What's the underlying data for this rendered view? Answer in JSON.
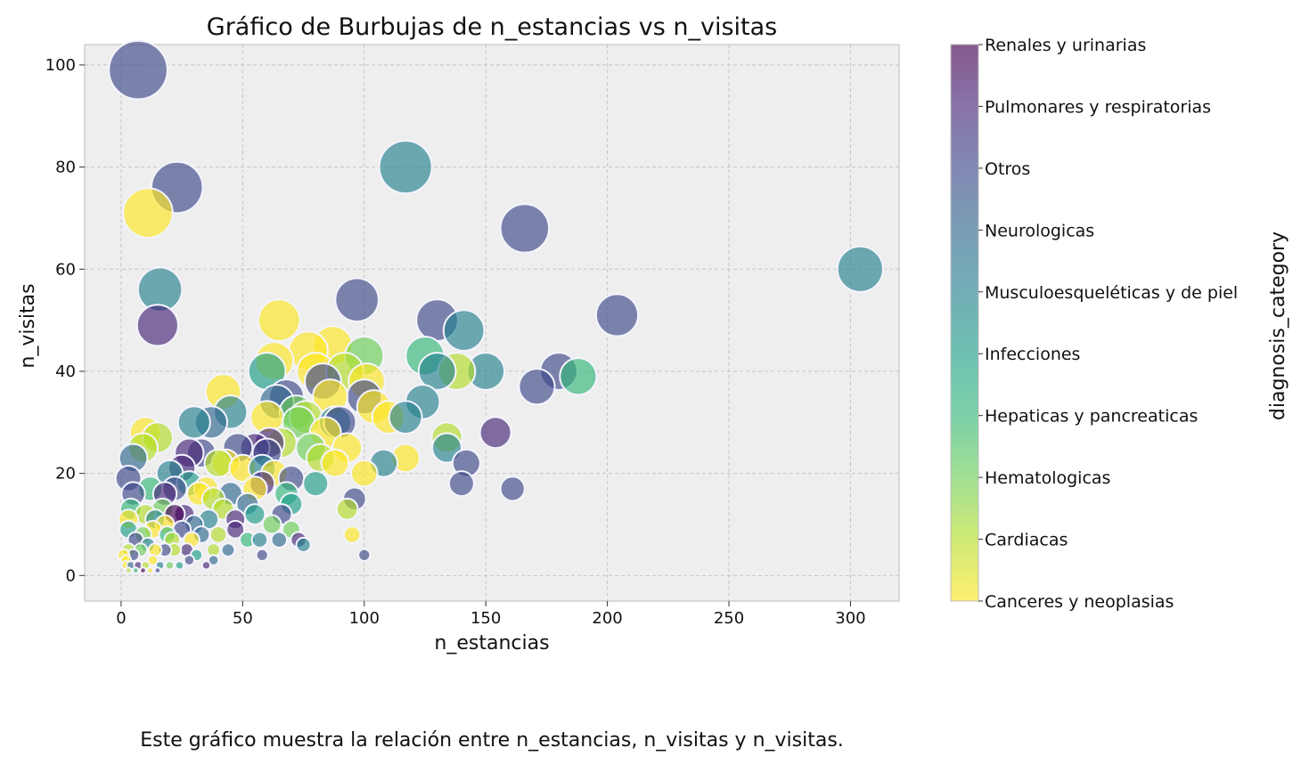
{
  "chart_data": {
    "type": "scatter",
    "title": "Gráfico de Burbujas de n_estancias vs n_visitas",
    "xlabel": "n_estancias",
    "ylabel": "n_visitas",
    "xlim": [
      -15,
      320
    ],
    "ylim": [
      -5,
      104
    ],
    "xticks": [
      0,
      50,
      100,
      150,
      200,
      250,
      300
    ],
    "yticks": [
      0,
      20,
      40,
      60,
      80,
      100
    ],
    "grid": true,
    "bubble_size_variable": "n_visitas",
    "colorbar": {
      "label": "diagnosis_category",
      "categories": [
        "Canceres y neoplasias",
        "Cardiacas",
        "Hematologicas",
        "Hepaticas y pancreaticas",
        "Infecciones",
        "Musculoesqueléticas y de piel",
        "Neurologicas",
        "Otros",
        "Pulmonares y respiratorias",
        "Renales y urinarias"
      ],
      "colors": [
        "#fde725",
        "#b5de2b",
        "#6ece58",
        "#35b779",
        "#1f9e89",
        "#26828e",
        "#31688e",
        "#3e4989",
        "#482878",
        "#440154"
      ]
    },
    "points": [
      [
        7,
        99,
        7
      ],
      [
        23,
        76,
        7
      ],
      [
        11,
        71,
        0
      ],
      [
        117,
        80,
        5
      ],
      [
        166,
        68,
        7
      ],
      [
        304,
        60,
        5
      ],
      [
        16,
        56,
        5
      ],
      [
        15,
        49,
        8
      ],
      [
        97,
        54,
        7
      ],
      [
        130,
        50,
        7
      ],
      [
        204,
        51,
        7
      ],
      [
        141,
        48,
        5
      ],
      [
        65,
        50,
        0
      ],
      [
        100,
        43,
        2
      ],
      [
        125,
        43,
        3
      ],
      [
        180,
        40,
        7
      ],
      [
        188,
        39,
        3
      ],
      [
        150,
        40,
        5
      ],
      [
        138,
        40,
        1
      ],
      [
        130,
        40,
        5
      ],
      [
        77,
        44,
        0
      ],
      [
        87,
        45,
        0
      ],
      [
        80,
        40,
        0
      ],
      [
        60,
        40,
        4
      ],
      [
        63,
        42,
        0
      ],
      [
        171,
        37,
        7
      ],
      [
        100,
        35,
        7
      ],
      [
        104,
        33,
        0
      ],
      [
        68,
        35,
        7
      ],
      [
        42,
        36,
        0
      ],
      [
        124,
        34,
        5
      ],
      [
        110,
        31,
        0
      ],
      [
        117,
        31,
        5
      ],
      [
        88,
        30,
        5
      ],
      [
        73,
        30,
        2
      ],
      [
        60,
        31,
        0
      ],
      [
        45,
        32,
        5
      ],
      [
        37,
        30,
        6
      ],
      [
        30,
        30,
        5
      ],
      [
        10,
        28,
        0
      ],
      [
        15,
        27,
        1
      ],
      [
        9,
        25,
        1
      ],
      [
        154,
        28,
        8
      ],
      [
        134,
        27,
        1
      ],
      [
        134,
        25,
        5
      ],
      [
        142,
        22,
        7
      ],
      [
        140,
        18,
        7
      ],
      [
        161,
        17,
        7
      ],
      [
        108,
        22,
        5
      ],
      [
        117,
        23,
        0
      ],
      [
        100,
        20,
        0
      ],
      [
        93,
        25,
        0
      ],
      [
        88,
        22,
        0
      ],
      [
        82,
        23,
        1
      ],
      [
        78,
        25,
        2
      ],
      [
        60,
        24,
        7
      ],
      [
        55,
        25,
        8
      ],
      [
        48,
        25,
        7
      ],
      [
        43,
        22,
        0
      ],
      [
        33,
        24,
        7
      ],
      [
        28,
        24,
        8
      ],
      [
        25,
        21,
        8
      ],
      [
        20,
        20,
        5
      ],
      [
        5,
        23,
        6
      ],
      [
        3,
        19,
        7
      ],
      [
        96,
        15,
        7
      ],
      [
        93,
        13,
        1
      ],
      [
        95,
        8,
        0
      ],
      [
        100,
        4,
        7
      ],
      [
        63,
        20,
        0
      ],
      [
        58,
        18,
        8
      ],
      [
        55,
        17,
        0
      ],
      [
        68,
        16,
        3
      ],
      [
        70,
        14,
        4
      ],
      [
        52,
        14,
        6
      ],
      [
        45,
        16,
        6
      ],
      [
        38,
        15,
        1
      ],
      [
        32,
        16,
        0
      ],
      [
        28,
        18,
        4
      ],
      [
        22,
        17,
        7
      ],
      [
        18,
        16,
        8
      ],
      [
        12,
        17,
        3
      ],
      [
        5,
        16,
        7
      ],
      [
        4,
        13,
        3
      ],
      [
        66,
        12,
        7
      ],
      [
        62,
        10,
        2
      ],
      [
        55,
        12,
        4
      ],
      [
        47,
        11,
        8
      ],
      [
        42,
        13,
        1
      ],
      [
        36,
        11,
        5
      ],
      [
        30,
        10,
        6
      ],
      [
        26,
        12,
        8
      ],
      [
        22,
        12,
        9
      ],
      [
        17,
        13,
        2
      ],
      [
        14,
        11,
        5
      ],
      [
        10,
        12,
        1
      ],
      [
        3,
        11,
        0
      ],
      [
        3,
        9,
        4
      ],
      [
        6,
        7,
        7
      ],
      [
        9,
        8,
        2
      ],
      [
        13,
        9,
        0
      ],
      [
        19,
        8,
        3
      ],
      [
        25,
        9,
        7
      ],
      [
        33,
        8,
        6
      ],
      [
        40,
        8,
        1
      ],
      [
        47,
        9,
        8
      ],
      [
        52,
        7,
        3
      ],
      [
        57,
        7,
        5
      ],
      [
        65,
        7,
        6
      ],
      [
        70,
        9,
        2
      ],
      [
        75,
        6,
        5
      ],
      [
        73,
        7,
        8
      ],
      [
        58,
        4,
        7
      ],
      [
        44,
        5,
        6
      ],
      [
        38,
        5,
        1
      ],
      [
        31,
        4,
        4
      ],
      [
        27,
        5,
        8
      ],
      [
        22,
        5,
        1
      ],
      [
        18,
        5,
        7
      ],
      [
        14,
        5,
        0
      ],
      [
        11,
        6,
        5
      ],
      [
        8,
        5,
        2
      ],
      [
        5,
        4,
        7
      ],
      [
        3,
        5,
        1
      ],
      [
        2,
        2,
        0
      ],
      [
        4,
        2,
        6
      ],
      [
        7,
        2,
        8
      ],
      [
        10,
        2,
        1
      ],
      [
        13,
        3,
        0
      ],
      [
        16,
        2,
        5
      ],
      [
        20,
        2,
        2
      ],
      [
        24,
        2,
        4
      ],
      [
        28,
        3,
        7
      ],
      [
        35,
        2,
        8
      ],
      [
        38,
        3,
        6
      ],
      [
        2,
        3,
        0
      ],
      [
        6,
        1,
        3
      ],
      [
        9,
        1,
        9
      ],
      [
        12,
        1,
        0
      ],
      [
        15,
        1,
        7
      ],
      [
        3,
        1,
        1
      ],
      [
        1,
        4,
        0
      ],
      [
        18,
        10,
        0
      ],
      [
        21,
        7,
        1
      ],
      [
        29,
        7,
        0
      ],
      [
        35,
        17,
        0
      ],
      [
        40,
        22,
        1
      ],
      [
        50,
        21,
        0
      ],
      [
        66,
        26,
        1
      ],
      [
        72,
        32,
        2
      ],
      [
        76,
        31,
        1
      ],
      [
        84,
        28,
        0
      ],
      [
        86,
        35,
        0
      ],
      [
        92,
        40,
        1
      ],
      [
        101,
        38,
        0
      ],
      [
        83,
        38,
        7
      ],
      [
        90,
        30,
        7
      ],
      [
        61,
        26,
        8
      ],
      [
        64,
        34,
        6
      ],
      [
        70,
        19,
        7
      ],
      [
        58,
        21,
        5
      ],
      [
        80,
        18,
        4
      ]
    ]
  },
  "caption": "Este gráfico muestra la relación entre n_estancias, n_visitas y n_visitas."
}
